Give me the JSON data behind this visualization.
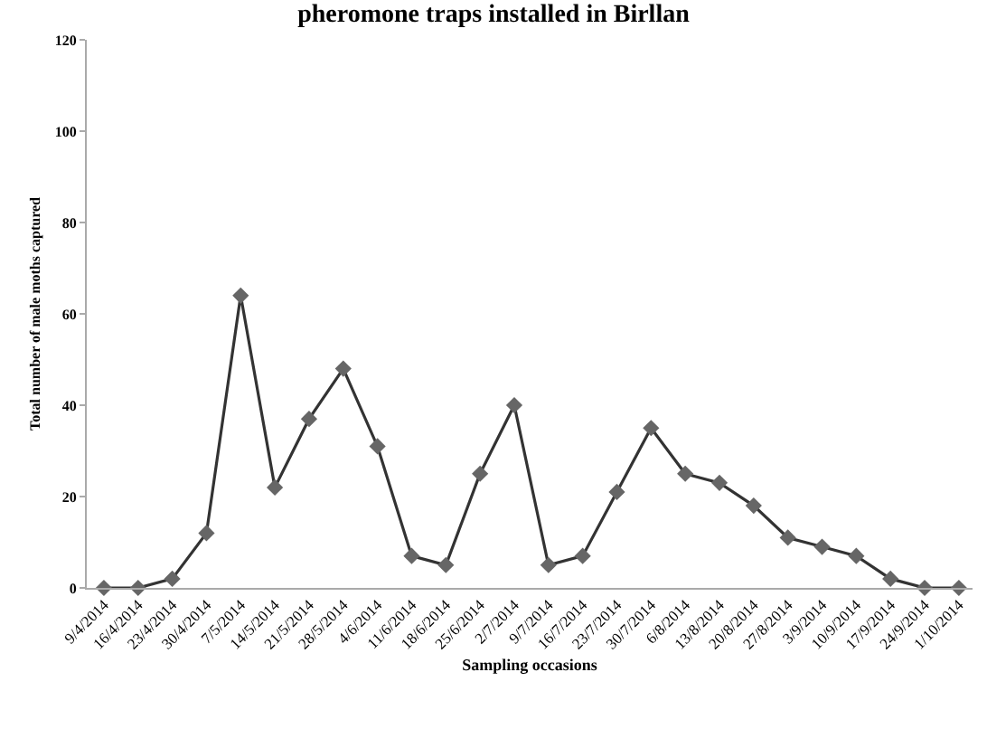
{
  "chart_data": {
    "type": "line",
    "title": "pheromone traps installed in Birllan",
    "xlabel": "Sampling occasions",
    "ylabel": "Total number of male moths captured",
    "categories": [
      "9/4/2014",
      "16/4/2014",
      "23/4/2014",
      "30/4/2014",
      "7/5/2014",
      "14/5/2014",
      "21/5/2014",
      "28/5/2014",
      "4/6/2014",
      "11/6/2014",
      "18/6/2014",
      "25/6/2014",
      "2/7/2014",
      "9/7/2014",
      "16/7/2014",
      "23/7/2014",
      "30/7/2014",
      "6/8/2014",
      "13/8/2014",
      "20/8/2014",
      "27/8/2014",
      "3/9/2014",
      "10/9/2014",
      "17/9/2014",
      "24/9/2014",
      "1/10/2014"
    ],
    "series": [
      {
        "color": "#333333",
        "values": [
          0,
          0,
          2,
          12,
          64,
          22,
          37,
          48,
          31,
          7,
          5,
          25,
          40,
          5,
          7,
          21,
          35,
          25,
          23,
          18,
          11,
          9,
          7,
          2,
          0,
          0
        ]
      }
    ],
    "ylim": [
      0,
      120
    ],
    "yticks": [
      0,
      20,
      40,
      60,
      80,
      100,
      120
    ],
    "legend": false,
    "marker": "diamond",
    "line_style": "solid"
  }
}
